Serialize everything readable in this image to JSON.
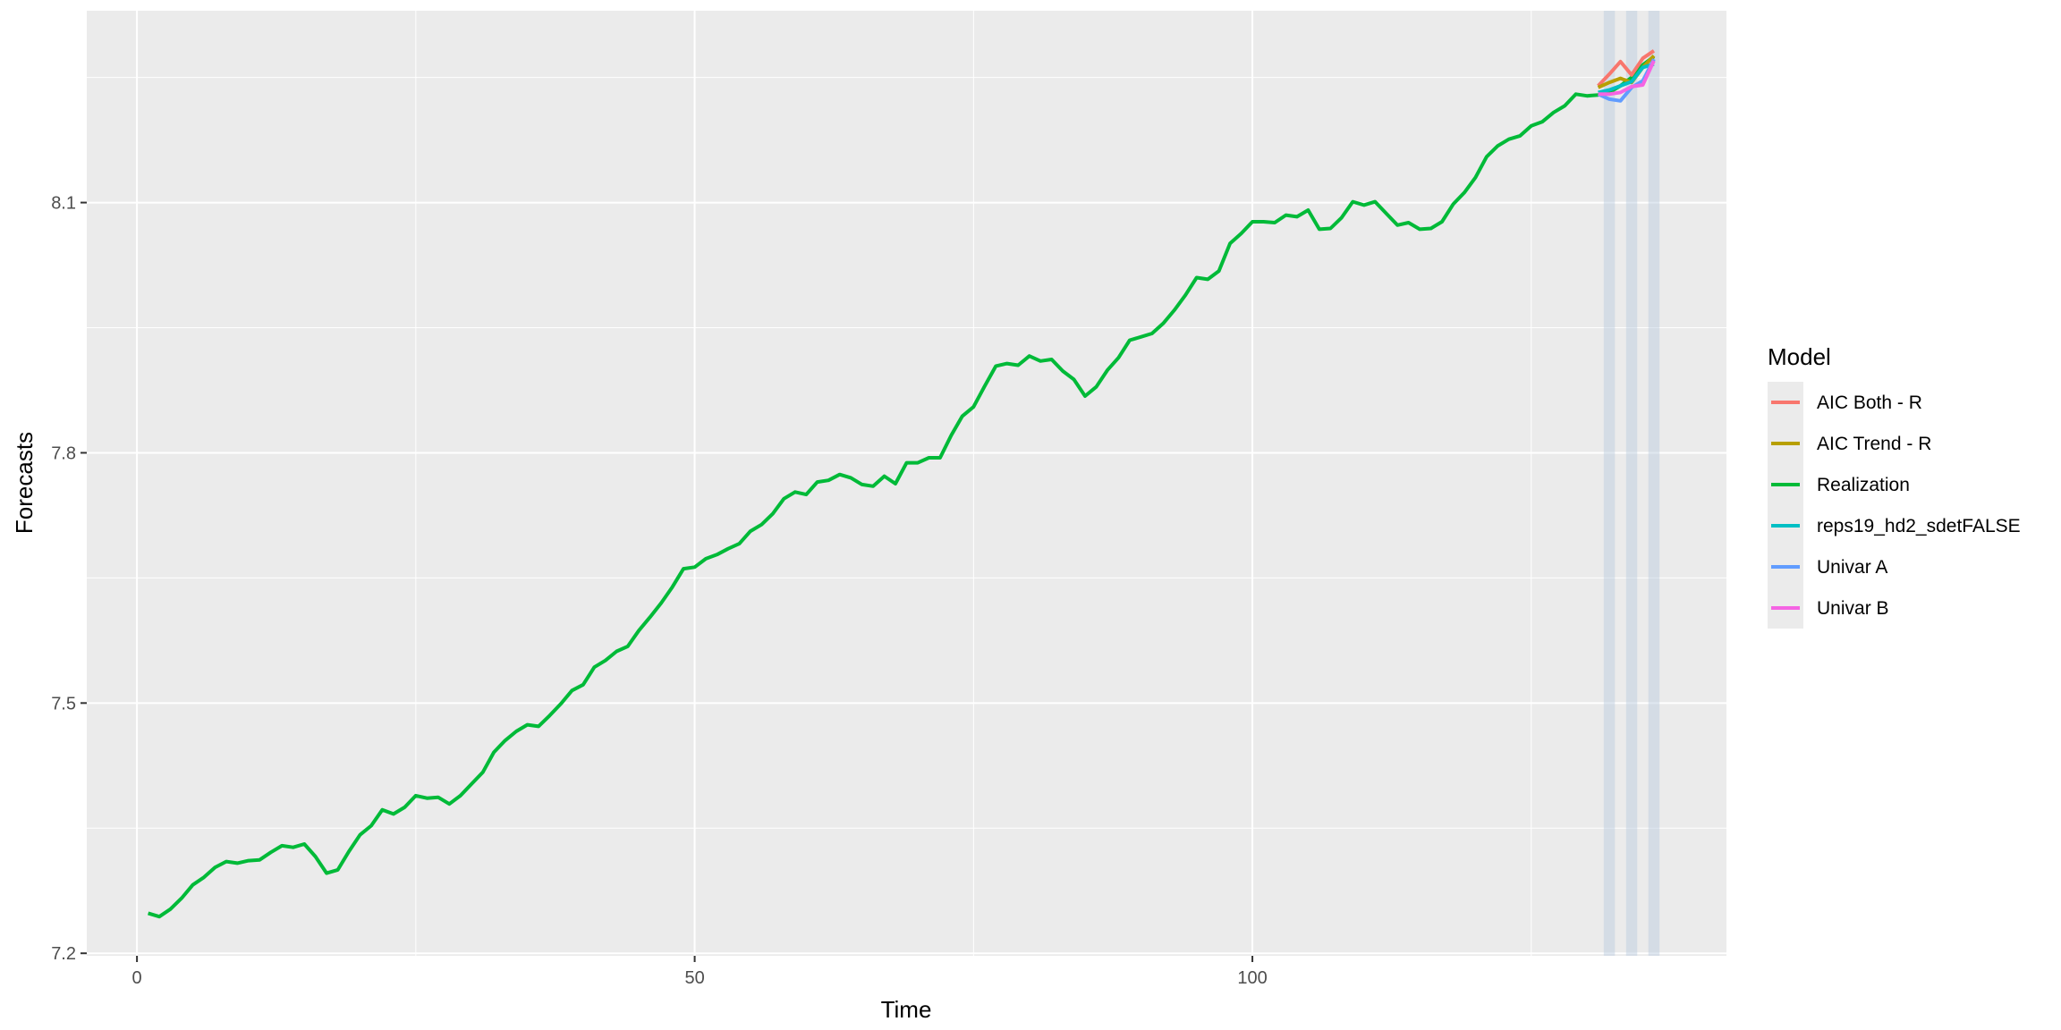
{
  "chart_data": {
    "type": "line",
    "title": "",
    "xlabel": "Time",
    "ylabel": "Forecasts",
    "xlim": [
      -4.5,
      142.5
    ],
    "ylim": [
      7.197,
      8.33
    ],
    "x_major_ticks": [
      0,
      50,
      100
    ],
    "x_minor_ticks": [
      25,
      75,
      125
    ],
    "y_major_ticks": [
      7.2,
      7.5,
      7.8,
      8.1
    ],
    "y_minor_ticks": [
      7.35,
      7.65,
      7.95,
      8.25
    ],
    "x_tick_labels": [
      "0",
      "50",
      "100"
    ],
    "y_tick_labels": [
      "7.2",
      "7.5",
      "7.8",
      "8.1"
    ],
    "grid": true,
    "background": "#EBEBEB",
    "forecast_bands": [
      {
        "x0": 131.5,
        "x1": 132.5
      },
      {
        "x0": 133.5,
        "x1": 134.5
      },
      {
        "x0": 135.5,
        "x1": 136.5
      }
    ],
    "band_color": "#B8C9DE",
    "legend": {
      "title": "Model",
      "position": "right",
      "entries": [
        {
          "label": "AIC Both - R",
          "color": "#F8766D"
        },
        {
          "label": "AIC Trend - R",
          "color": "#B79F00"
        },
        {
          "label": "Realization",
          "color": "#00BA38"
        },
        {
          "label": "reps19_hd2_sdetFALSE",
          "color": "#00BFC4"
        },
        {
          "label": "Univar A",
          "color": "#619CFF"
        },
        {
          "label": "Univar B",
          "color": "#F564E3"
        }
      ]
    },
    "series": [
      {
        "name": "Realization",
        "color": "#00BA38",
        "x": [
          1,
          2,
          3,
          4,
          5,
          6,
          7,
          8,
          9,
          10,
          11,
          12,
          13,
          14,
          15,
          16,
          17,
          18,
          19,
          20,
          21,
          22,
          23,
          24,
          25,
          26,
          27,
          28,
          29,
          30,
          31,
          32,
          33,
          34,
          35,
          36,
          37,
          38,
          39,
          40,
          41,
          42,
          43,
          44,
          45,
          46,
          47,
          48,
          49,
          50,
          51,
          52,
          53,
          54,
          55,
          56,
          57,
          58,
          59,
          60,
          61,
          62,
          63,
          64,
          65,
          66,
          67,
          68,
          69,
          70,
          71,
          72,
          73,
          74,
          75,
          76,
          77,
          78,
          79,
          80,
          81,
          82,
          83,
          84,
          85,
          86,
          87,
          88,
          89,
          90,
          91,
          92,
          93,
          94,
          95,
          96,
          97,
          98,
          99,
          100,
          101,
          102,
          103,
          104,
          105,
          106,
          107,
          108,
          109,
          110,
          111,
          112,
          113,
          114,
          115,
          116,
          117,
          118,
          119,
          120,
          121,
          122,
          123,
          124,
          125,
          126,
          127,
          128,
          129,
          130,
          131,
          132,
          133,
          134,
          135,
          136
        ],
        "values": [
          7.248,
          7.244,
          7.253,
          7.266,
          7.282,
          7.291,
          7.303,
          7.31,
          7.308,
          7.311,
          7.312,
          7.321,
          7.329,
          7.327,
          7.331,
          7.316,
          7.296,
          7.3,
          7.322,
          7.342,
          7.353,
          7.372,
          7.367,
          7.375,
          7.389,
          7.386,
          7.387,
          7.379,
          7.389,
          7.403,
          7.417,
          7.441,
          7.455,
          7.466,
          7.474,
          7.472,
          7.485,
          7.499,
          7.515,
          7.522,
          7.543,
          7.551,
          7.562,
          7.568,
          7.587,
          7.603,
          7.62,
          7.639,
          7.661,
          7.663,
          7.673,
          7.678,
          7.685,
          7.691,
          7.706,
          7.714,
          7.727,
          7.745,
          7.753,
          7.75,
          7.765,
          7.767,
          7.774,
          7.77,
          7.762,
          7.76,
          7.772,
          7.763,
          7.788,
          7.788,
          7.794,
          7.794,
          7.821,
          7.844,
          7.855,
          7.88,
          7.904,
          7.907,
          7.905,
          7.916,
          7.91,
          7.912,
          7.898,
          7.888,
          7.868,
          7.879,
          7.899,
          7.914,
          7.935,
          7.939,
          7.943,
          7.955,
          7.971,
          7.989,
          8.01,
          8.008,
          8.018,
          8.051,
          8.063,
          8.077,
          8.077,
          8.076,
          8.085,
          8.083,
          8.091,
          8.068,
          8.069,
          8.082,
          8.101,
          8.097,
          8.101,
          8.087,
          8.073,
          8.076,
          8.068,
          8.069,
          8.077,
          8.098,
          8.112,
          8.13,
          8.155,
          8.168,
          8.176,
          8.18,
          8.192,
          8.197,
          8.208,
          8.216,
          8.23,
          8.228,
          8.229,
          8.232,
          8.24,
          8.25,
          8.265,
          8.275
        ]
      },
      {
        "name": "AIC Both - R",
        "color": "#F8766D",
        "x": [
          131,
          132,
          133,
          134,
          135,
          136
        ],
        "values": [
          8.24,
          8.254,
          8.269,
          8.253,
          8.273,
          8.282
        ]
      },
      {
        "name": "AIC Trend - R",
        "color": "#B79F00",
        "x": [
          131,
          132,
          133,
          134,
          135,
          136
        ],
        "values": [
          8.238,
          8.244,
          8.249,
          8.244,
          8.262,
          8.276
        ]
      },
      {
        "name": "reps19_hd2_sdetFALSE",
        "color": "#00BFC4",
        "x": [
          131,
          132,
          133,
          134,
          135,
          136
        ],
        "values": [
          8.232,
          8.235,
          8.24,
          8.245,
          8.262,
          8.266
        ]
      },
      {
        "name": "Univar A",
        "color": "#619CFF",
        "x": [
          131,
          132,
          133,
          134,
          135,
          136
        ],
        "values": [
          8.23,
          8.224,
          8.222,
          8.238,
          8.246,
          8.272
        ]
      },
      {
        "name": "Univar B",
        "color": "#F564E3",
        "x": [
          131,
          132,
          133,
          134,
          135,
          136
        ],
        "values": [
          8.23,
          8.23,
          8.232,
          8.239,
          8.241,
          8.27
        ]
      }
    ]
  }
}
